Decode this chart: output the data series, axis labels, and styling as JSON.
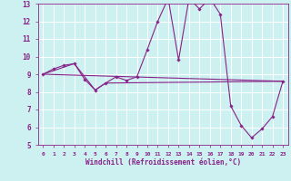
{
  "title": "",
  "xlabel": "Windchill (Refroidissement éolien,°C)",
  "bg_color": "#cdf0f0",
  "grid_color": "#ffffff",
  "line_color": "#882288",
  "xlim": [
    -0.5,
    23.5
  ],
  "ylim": [
    5,
    13
  ],
  "xticks": [
    0,
    1,
    2,
    3,
    4,
    5,
    6,
    7,
    8,
    9,
    10,
    11,
    12,
    13,
    14,
    15,
    16,
    17,
    18,
    19,
    20,
    21,
    22,
    23
  ],
  "yticks": [
    5,
    6,
    7,
    8,
    9,
    10,
    11,
    12,
    13
  ],
  "line1_x": [
    0,
    1,
    2,
    3,
    4,
    5,
    6,
    7,
    8,
    9,
    10,
    11,
    12,
    13,
    14,
    15,
    16,
    17,
    18,
    19,
    20,
    21,
    22,
    23
  ],
  "line1_y": [
    9.0,
    9.3,
    9.5,
    9.6,
    8.7,
    8.1,
    8.5,
    8.85,
    8.65,
    8.85,
    10.4,
    12.0,
    13.3,
    9.8,
    13.3,
    12.7,
    13.3,
    12.4,
    7.2,
    6.1,
    5.4,
    5.9,
    6.6,
    8.6
  ],
  "line2_x": [
    0,
    23
  ],
  "line2_y": [
    9.0,
    8.6
  ],
  "line3_x": [
    0,
    3,
    5,
    6,
    23
  ],
  "line3_y": [
    9.0,
    9.6,
    8.1,
    8.5,
    8.6
  ],
  "figsize": [
    3.2,
    2.0
  ],
  "dpi": 100
}
